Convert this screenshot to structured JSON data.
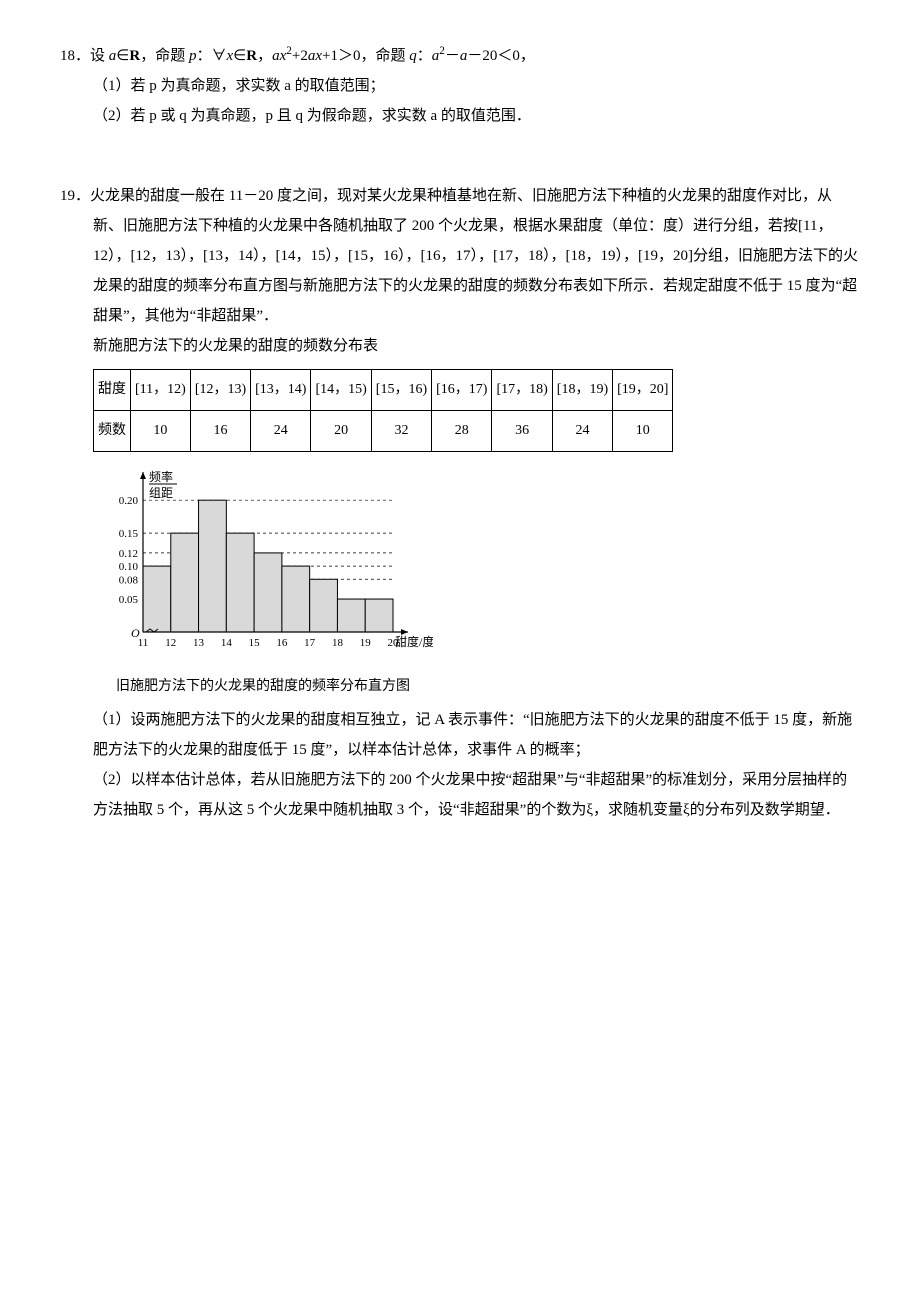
{
  "p18": {
    "num": "18．",
    "stem": "设 a∈R，命题 p：∀x∈R，ax²+2ax+1＞0，命题 q：a² − a − 20＜0，",
    "q1": "（1）若 p 为真命题，求实数 a 的取值范围；",
    "q2": "（2）若 p 或 q 为真命题，p 且 q 为假命题，求实数 a 的取值范围．"
  },
  "p19": {
    "num": "19．",
    "stem1": "火龙果的甜度一般在 11－20 度之间，现对某火龙果种植基地在新、旧施肥方法下种植的火龙果的甜度作对比，从新、旧施肥方法下种植的火龙果中各随机抽取了 200 个火龙果，根据水果甜度（单位：度）进行分组，若按[11，12），[12，13），[13，14），[14，15），[15，16），[16，17），[17，18），[18，19），[19，20]分组，旧施肥方法下的火龙果的甜度的频率分布直方图与新施肥方法下的火龙果的甜度的频数分布表如下所示．若规定甜度不低于 15 度为“超甜果”，其他为“非超甜果”．",
    "table_title": "新施肥方法下的火龙果的甜度的频数分布表",
    "table": {
      "row_labels": [
        "甜度",
        "频数"
      ],
      "intervals": [
        "[11，12)",
        "[12，13)",
        "[13，14)",
        "[14，15)",
        "[15，16)",
        "[16，17)",
        "[17，18)",
        "[18，19)",
        "[19，20]"
      ],
      "counts": [
        "10",
        "16",
        "24",
        "20",
        "32",
        "28",
        "36",
        "24",
        "10"
      ]
    },
    "chart_caption": "旧施肥方法下的火龙果的甜度的频率分布直方图",
    "q1": "（1）设两施肥方法下的火龙果的甜度相互独立，记 A 表示事件：“旧施肥方法下的火龙果的甜度不低于 15 度，新施肥方法下的火龙果的甜度低于 15 度”，以样本估计总体，求事件 A 的概率；",
    "q2": "（2）以样本估计总体，若从旧施肥方法下的 200 个火龙果中按“超甜果”与“非超甜果”的标准划分，采用分层抽样的方法抽取 5 个，再从这 5 个火龙果中随机抽取 3 个，设“非超甜果”的个数为ξ，求随机变量ξ的分布列及数学期望．"
  },
  "chart": {
    "y_label_top": "频率",
    "y_label_bot": "组距",
    "x_label": "甜度/度",
    "origin": "O",
    "y_ticks": [
      {
        "v": 0.05,
        "label": "0.05"
      },
      {
        "v": 0.08,
        "label": "0.08"
      },
      {
        "v": 0.1,
        "label": "0.10"
      },
      {
        "v": 0.12,
        "label": "0.12"
      },
      {
        "v": 0.15,
        "label": "0.15"
      },
      {
        "v": 0.2,
        "label": "0.20"
      }
    ],
    "x_ticks": [
      "11",
      "12",
      "13",
      "14",
      "15",
      "16",
      "17",
      "18",
      "19",
      "20"
    ],
    "bars": [
      0.1,
      0.15,
      0.2,
      0.15,
      0.12,
      0.1,
      0.08,
      0.05,
      0.05
    ],
    "bar_fill": "#d9d9d9",
    "bar_stroke": "#000",
    "axis_color": "#000",
    "grid_dash": "3,3",
    "bg": "#ffffff"
  }
}
